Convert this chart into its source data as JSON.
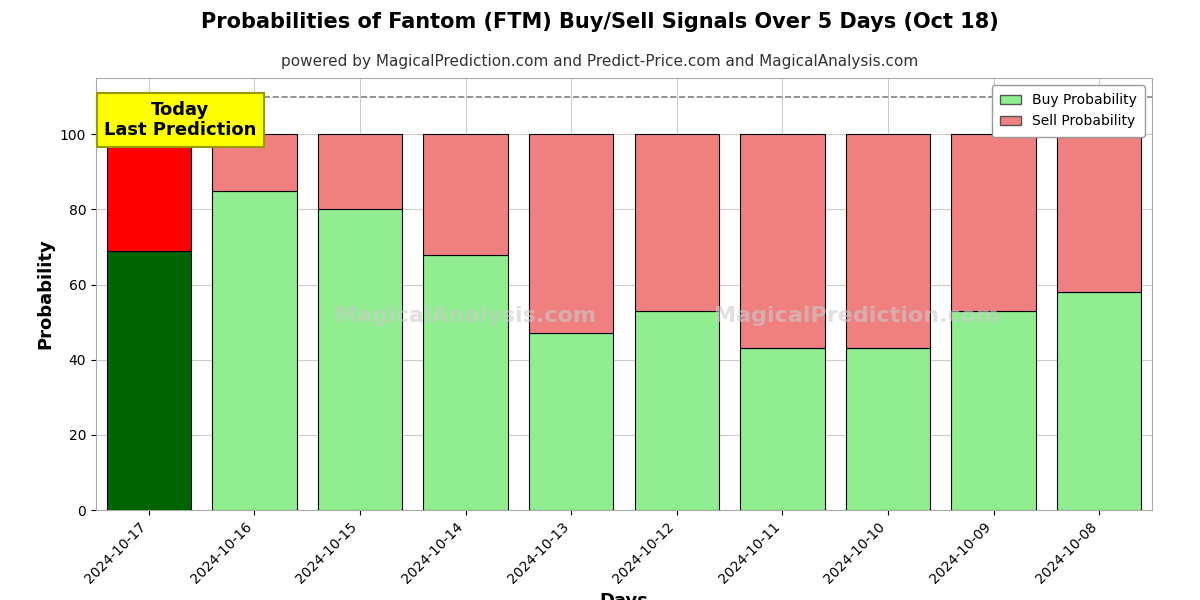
{
  "title": "Probabilities of Fantom (FTM) Buy/Sell Signals Over 5 Days (Oct 18)",
  "subtitle": "powered by MagicalPrediction.com and Predict-Price.com and MagicalAnalysis.com",
  "xlabel": "Days",
  "ylabel": "Probability",
  "watermark_line1": "MagicalAnalysis.com",
  "watermark_line2": "MagicalPrediction.com",
  "categories": [
    "2024-10-17",
    "2024-10-16",
    "2024-10-15",
    "2024-10-14",
    "2024-10-13",
    "2024-10-12",
    "2024-10-11",
    "2024-10-10",
    "2024-10-09",
    "2024-10-08"
  ],
  "buy_values": [
    69,
    85,
    80,
    68,
    47,
    53,
    43,
    43,
    53,
    58
  ],
  "sell_values": [
    31,
    15,
    20,
    32,
    53,
    47,
    57,
    57,
    47,
    42
  ],
  "today_bar_buy_color": "#006400",
  "today_bar_sell_color": "#FF0000",
  "other_bar_buy_color": "#90EE90",
  "other_bar_sell_color": "#F08080",
  "bar_edge_color": "#000000",
  "annotation_text": "Today\nLast Prediction",
  "annotation_bg_color": "#FFFF00",
  "annotation_text_color": "#000000",
  "annotation_edge_color": "#999900",
  "legend_buy_label": "Buy Probability",
  "legend_sell_label": "Sell Probability",
  "ylim": [
    0,
    115
  ],
  "yticks": [
    0,
    20,
    40,
    60,
    80,
    100
  ],
  "dashed_line_y": 110,
  "grid_color": "#cccccc",
  "background_color": "#ffffff",
  "title_fontsize": 15,
  "subtitle_fontsize": 11,
  "label_fontsize": 13,
  "tick_fontsize": 10,
  "annotation_fontsize": 13
}
